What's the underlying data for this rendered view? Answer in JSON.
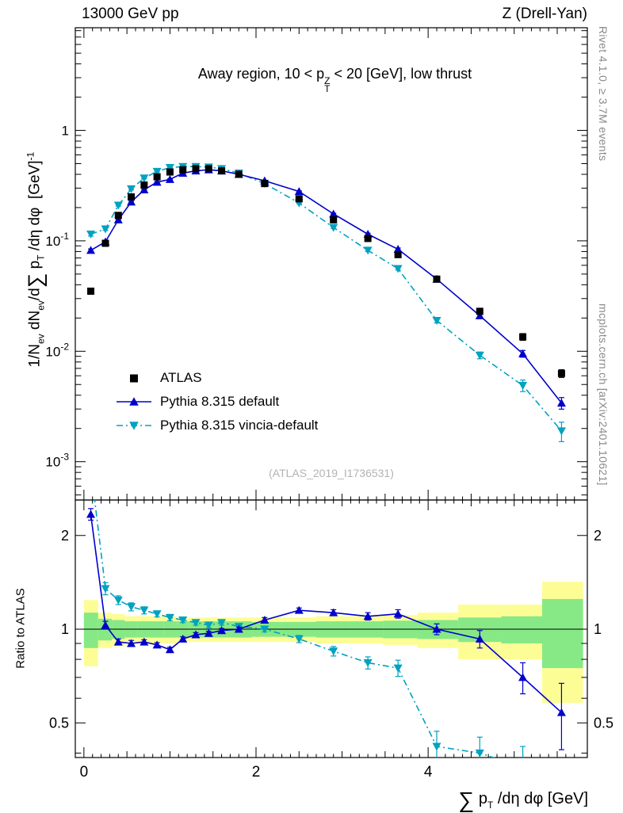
{
  "header": {
    "left_title": "13000 GeV pp",
    "right_title": "Z (Drell-Yan)"
  },
  "side_notes": {
    "right_top": "Rivet 4.1.0, ≥ 3.7M events",
    "right_bottom": "mcplots.cern.ch [arXiv:2401.10621]"
  },
  "watermark": "(ATLAS_2019_I1736531)",
  "panel_title": {
    "pre": "Away region, 10 < p",
    "sup": "Z",
    "sub": "T",
    "post": " < 20 [GeV], low thrust"
  },
  "axis_labels": {
    "y_main": {
      "p1": "1/N",
      "s1": "ev",
      "p2": " dN",
      "s2": "ev",
      "p3": "/d",
      "sigma": "∑",
      "p4": " p",
      "s3": "T",
      "p5": " /dη dφ  [GeV]",
      "sup": "-1"
    },
    "y_ratio": "Ratio to ATLAS",
    "x": {
      "sigma": "∑",
      "p1": " p",
      "s1": "T",
      "p2": " /dη dφ [GeV]"
    }
  },
  "chart_data": {
    "type": "line",
    "title": "Away region, 10 < pT(Z) < 20 [GeV], low thrust",
    "xlabel": "Sum pT /deta dphi [GeV]",
    "ylabel": "1/N_ev dN_ev/d Sum pT /deta dphi [GeV]^-1",
    "x": [
      0.08,
      0.25,
      0.4,
      0.55,
      0.7,
      0.85,
      1,
      1.15,
      1.3,
      1.45,
      1.6,
      1.8,
      2.1,
      2.5,
      2.9,
      3.3,
      3.65,
      4.1,
      4.6,
      5.1,
      5.55
    ],
    "xlim": [
      -0.1,
      5.85
    ],
    "xticks": [
      {
        "v": 0,
        "label": "0"
      },
      {
        "v": 2,
        "label": "2"
      },
      {
        "v": 4,
        "label": "4"
      }
    ],
    "main": {
      "yscale": "log",
      "ylim": [
        0.00045,
        8.5
      ],
      "yticks": [
        {
          "v": 1,
          "label": "1"
        },
        {
          "v": 0.1,
          "base": "10",
          "exp": "-1"
        },
        {
          "v": 0.01,
          "base": "10",
          "exp": "-2"
        },
        {
          "v": 0.001,
          "base": "10",
          "exp": "-3"
        }
      ]
    },
    "series": [
      {
        "name": "ATLAS",
        "marker": "square",
        "color": "#000000",
        "line": "none",
        "values": [
          0.035,
          0.095,
          0.17,
          0.25,
          0.32,
          0.38,
          0.42,
          0.44,
          0.45,
          0.45,
          0.43,
          0.4,
          0.33,
          0.24,
          0.155,
          0.105,
          0.075,
          0.045,
          0.023,
          0.0135,
          0.0063
        ],
        "err_rel": [
          0.06,
          0.04,
          0.03,
          0.03,
          0.03,
          0.03,
          0.03,
          0.03,
          0.03,
          0.03,
          0.03,
          0.03,
          0.03,
          0.03,
          0.03,
          0.04,
          0.04,
          0.05,
          0.06,
          0.07,
          0.08
        ]
      },
      {
        "name": "Pythia 8.315 default",
        "marker": "triangle-up",
        "color": "#0000cc",
        "line": "solid",
        "values": [
          0.082,
          0.098,
          0.155,
          0.225,
          0.29,
          0.34,
          0.36,
          0.41,
          0.43,
          0.44,
          0.43,
          0.4,
          0.35,
          0.28,
          0.175,
          0.115,
          0.084,
          0.045,
          0.021,
          0.0095,
          0.0034
        ],
        "err_rel": [
          0.03,
          0.02,
          0.015,
          0.015,
          0.01,
          0.01,
          0.01,
          0.01,
          0.01,
          0.01,
          0.01,
          0.01,
          0.01,
          0.012,
          0.015,
          0.02,
          0.025,
          0.03,
          0.05,
          0.07,
          0.12
        ]
      },
      {
        "name": "Pythia 8.315 vincia-default",
        "marker": "triangle-down",
        "color": "#00a2c0",
        "line": "dashdot",
        "values": [
          0.115,
          0.128,
          0.21,
          0.295,
          0.37,
          0.425,
          0.46,
          0.47,
          0.47,
          0.465,
          0.45,
          0.41,
          0.33,
          0.22,
          0.132,
          0.082,
          0.056,
          0.019,
          0.0092,
          0.0049,
          0.0019
        ],
        "err_rel": [
          0.04,
          0.03,
          0.02,
          0.02,
          0.015,
          0.015,
          0.012,
          0.012,
          0.012,
          0.012,
          0.012,
          0.012,
          0.013,
          0.015,
          0.02,
          0.025,
          0.03,
          0.05,
          0.07,
          0.12,
          0.2
        ]
      }
    ],
    "ratio": {
      "ylabel": "Ratio to ATLAS",
      "yscale": "log",
      "ylim": [
        0.387,
        2.6
      ],
      "yticks": [
        {
          "v": 0.5,
          "label": "0.5"
        },
        {
          "v": 1,
          "label": "1"
        },
        {
          "v": 2,
          "label": "2"
        }
      ],
      "y_minor": [
        0.4,
        0.6,
        0.7,
        0.8,
        0.9
      ],
      "center_line": 1,
      "bands": {
        "yellow_color": "#fdfd96",
        "green_color": "#86e986",
        "yellow_halfwidth": [
          0.24,
          0.13,
          0.12,
          0.1,
          0.1,
          0.1,
          0.1,
          0.09,
          0.09,
          0.09,
          0.09,
          0.09,
          0.09,
          0.09,
          0.1,
          0.1,
          0.11,
          0.13,
          0.2,
          0.2,
          0.42
        ],
        "green_halfwidth": [
          0.13,
          0.08,
          0.07,
          0.06,
          0.06,
          0.06,
          0.06,
          0.06,
          0.06,
          0.06,
          0.06,
          0.06,
          0.055,
          0.055,
          0.06,
          0.06,
          0.065,
          0.07,
          0.09,
          0.1,
          0.25
        ]
      },
      "series": [
        {
          "name": "Pythia 8.315 default",
          "values": [
            2.34,
            1.03,
            0.91,
            0.9,
            0.91,
            0.89,
            0.86,
            0.93,
            0.96,
            0.97,
            0.99,
            1,
            1.07,
            1.15,
            1.13,
            1.1,
            1.12,
            1,
            0.93,
            0.7,
            0.54
          ],
          "err": [
            0.1,
            0.03,
            0.02,
            0.02,
            0.015,
            0.015,
            0.015,
            0.015,
            0.015,
            0.015,
            0.015,
            0.015,
            0.02,
            0.02,
            0.025,
            0.03,
            0.035,
            0.04,
            0.06,
            0.08,
            0.13
          ]
        },
        {
          "name": "Pythia 8.315 vincia-default",
          "values": [
            3.3,
            1.35,
            1.24,
            1.18,
            1.15,
            1.12,
            1.09,
            1.07,
            1.05,
            1.03,
            1.05,
            1.02,
            1,
            0.93,
            0.85,
            0.78,
            0.75,
            0.42,
            0.4,
            0.36,
            0.3
          ],
          "err": [
            0.2,
            0.06,
            0.04,
            0.035,
            0.03,
            0.025,
            0.025,
            0.02,
            0.02,
            0.02,
            0.02,
            0.02,
            0.02,
            0.025,
            0.03,
            0.035,
            0.045,
            0.05,
            0.05,
            0.06,
            0.08
          ]
        }
      ]
    }
  }
}
